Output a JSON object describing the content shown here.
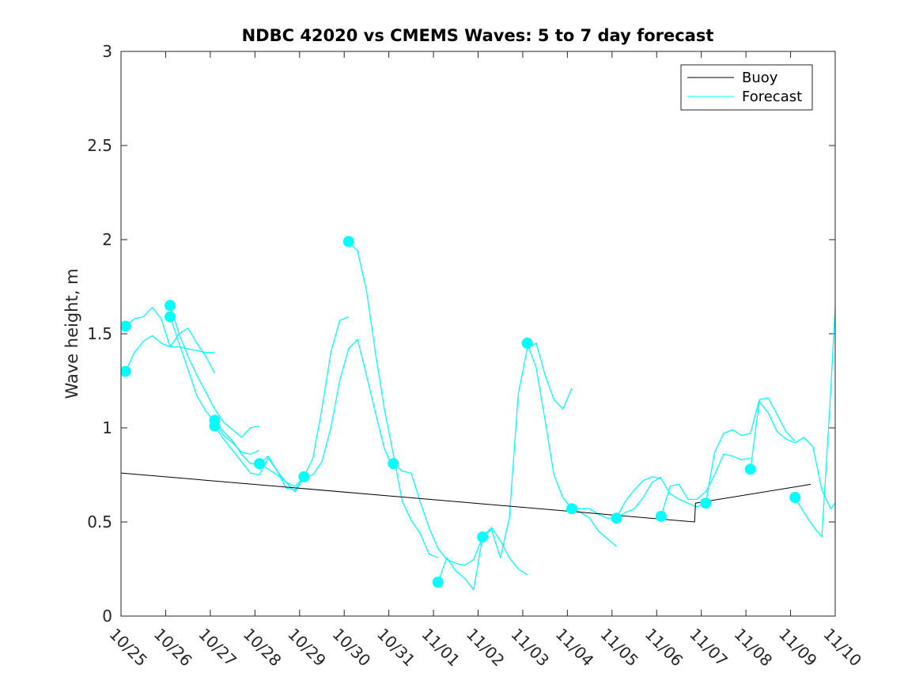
{
  "chart_data": {
    "type": "line",
    "title": "NDBC 42020 vs CMEMS Waves: 5 to 7 day forecast",
    "ylabel": "Wave height, m",
    "xlabel": "",
    "xlim": [
      0,
      16
    ],
    "ylim": [
      0,
      3
    ],
    "x_tick_values": [
      0,
      1,
      2,
      3,
      4,
      5,
      6,
      7,
      8,
      9,
      10,
      11,
      12,
      13,
      14,
      15,
      16
    ],
    "x_tick_labels": [
      "10/25",
      "10/26",
      "10/27",
      "10/28",
      "10/29",
      "10/30",
      "10/31",
      "11/01",
      "11/02",
      "11/03",
      "11/04",
      "11/05",
      "11/06",
      "11/07",
      "11/08",
      "11/09",
      "11/10"
    ],
    "y_ticks": [
      0,
      0.5,
      1,
      1.5,
      2,
      2.5,
      3
    ],
    "y_tick_labels": [
      "0",
      "0.5",
      "1",
      "1.5",
      "2",
      "2.5",
      "3"
    ],
    "grid": false,
    "legend_position": "top-right",
    "legend": [
      {
        "name": "Buoy",
        "color": "#000000"
      },
      {
        "name": "Forecast",
        "color": "#00FFFF"
      }
    ],
    "buoy": {
      "name": "Buoy",
      "color": "#000000",
      "x": [
        0.0,
        12.85,
        12.87,
        15.45
      ],
      "y": [
        0.76,
        0.5,
        0.6,
        0.7
      ]
    },
    "forecast": {
      "name": "Forecast",
      "color": "#00FFFF",
      "lines": [
        {
          "x": [
            0.1,
            0.3,
            0.5,
            0.7,
            0.9,
            1.1,
            1.3,
            1.5,
            1.7,
            1.9,
            2.1
          ],
          "y": [
            1.54,
            1.58,
            1.59,
            1.64,
            1.58,
            1.43,
            1.5,
            1.53,
            1.45,
            1.38,
            1.29
          ]
        },
        {
          "x": [
            0.1,
            0.3,
            0.5,
            0.7,
            0.9,
            1.1,
            1.3,
            1.5,
            1.7,
            1.9,
            2.1
          ],
          "y": [
            1.3,
            1.4,
            1.46,
            1.49,
            1.45,
            1.43,
            1.43,
            1.42,
            1.41,
            1.4,
            1.4
          ]
        },
        {
          "x": [
            1.1,
            1.3,
            1.5,
            1.7,
            1.9,
            2.1,
            2.3,
            2.5,
            2.7,
            2.9,
            3.1
          ],
          "y": [
            1.65,
            1.5,
            1.38,
            1.28,
            1.19,
            1.1,
            1.03,
            0.99,
            0.95,
            1.0,
            1.01
          ]
        },
        {
          "x": [
            1.1,
            1.3,
            1.5,
            1.7,
            1.9,
            2.1,
            2.3,
            2.5,
            2.7,
            2.9,
            3.1
          ],
          "y": [
            1.59,
            1.45,
            1.31,
            1.17,
            1.09,
            1.03,
            0.96,
            0.92,
            0.87,
            0.86,
            0.88
          ]
        },
        {
          "x": [
            2.1,
            2.3,
            2.5,
            2.7,
            2.9,
            3.1,
            3.3,
            3.5,
            3.7,
            3.9,
            4.1
          ],
          "y": [
            1.04,
            0.98,
            0.93,
            0.86,
            0.81,
            0.81,
            0.85,
            0.77,
            0.71,
            0.69,
            0.74
          ]
        },
        {
          "x": [
            2.1,
            2.3,
            2.5,
            2.7,
            2.9,
            3.1,
            3.3,
            3.5,
            3.7,
            3.9,
            4.1
          ],
          "y": [
            1.01,
            0.94,
            0.88,
            0.82,
            0.76,
            0.75,
            0.84,
            0.77,
            0.68,
            0.67,
            0.74
          ]
        },
        {
          "x": [
            3.1,
            3.3,
            3.5,
            3.7,
            3.9,
            4.1,
            4.3,
            4.5,
            4.7,
            4.9,
            5.1
          ],
          "y": [
            0.81,
            0.78,
            0.75,
            0.71,
            0.66,
            0.74,
            0.84,
            1.1,
            1.4,
            1.57,
            1.59
          ]
        },
        {
          "x": [
            4.1,
            4.3,
            4.5,
            4.7,
            4.9,
            5.1,
            5.3,
            5.5,
            5.7,
            5.9,
            6.1
          ],
          "y": [
            0.74,
            0.75,
            0.82,
            1.0,
            1.25,
            1.42,
            1.47,
            1.28,
            1.08,
            0.89,
            0.78
          ]
        },
        {
          "x": [
            5.1,
            5.3,
            5.5,
            5.7,
            5.9,
            6.1,
            6.3,
            6.5,
            6.7,
            6.9,
            7.1
          ],
          "y": [
            1.99,
            1.94,
            1.73,
            1.4,
            1.1,
            0.86,
            0.61,
            0.51,
            0.44,
            0.33,
            0.31
          ]
        },
        {
          "x": [
            6.1,
            6.3,
            6.5,
            6.7,
            6.9,
            7.1,
            7.3,
            7.5,
            7.7,
            7.9,
            8.1
          ],
          "y": [
            0.81,
            0.77,
            0.76,
            0.61,
            0.47,
            0.36,
            0.3,
            0.28,
            0.27,
            0.3,
            0.42
          ]
        },
        {
          "x": [
            7.1,
            7.3,
            7.5,
            7.7,
            7.9,
            8.1,
            8.3,
            8.5,
            8.7,
            8.9,
            9.1
          ],
          "y": [
            0.18,
            0.31,
            0.24,
            0.2,
            0.14,
            0.42,
            0.47,
            0.4,
            0.31,
            0.25,
            0.22
          ]
        },
        {
          "x": [
            8.1,
            8.3,
            8.5,
            8.7,
            8.9,
            9.1,
            9.3,
            9.5,
            9.7,
            9.9,
            10.1
          ],
          "y": [
            0.42,
            0.46,
            0.31,
            0.52,
            1.18,
            1.42,
            1.45,
            1.28,
            1.15,
            1.1,
            1.21
          ]
        },
        {
          "x": [
            9.1,
            9.3,
            9.5,
            9.7,
            9.9,
            10.1,
            10.3,
            10.5,
            10.7,
            10.9,
            11.1
          ],
          "y": [
            1.45,
            1.32,
            1.04,
            0.75,
            0.63,
            0.57,
            0.55,
            0.52,
            0.45,
            0.41,
            0.37
          ]
        },
        {
          "x": [
            10.1,
            10.3,
            10.5,
            10.7,
            10.9,
            11.1,
            11.3,
            11.5,
            11.7,
            11.9,
            12.1
          ],
          "y": [
            0.57,
            0.57,
            0.57,
            0.54,
            0.52,
            0.52,
            0.55,
            0.57,
            0.63,
            0.71,
            0.74
          ]
        },
        {
          "x": [
            11.1,
            11.3,
            11.5,
            11.7,
            11.9,
            12.1,
            12.3,
            12.5,
            12.7,
            12.9,
            13.1
          ],
          "y": [
            0.52,
            0.61,
            0.67,
            0.72,
            0.74,
            0.73,
            0.65,
            0.62,
            0.6,
            0.58,
            0.6
          ]
        },
        {
          "x": [
            12.1,
            12.3,
            12.5,
            12.7,
            12.9,
            13.1,
            13.3,
            13.5,
            13.7,
            13.9,
            14.1
          ],
          "y": [
            0.53,
            0.69,
            0.7,
            0.62,
            0.62,
            0.66,
            0.75,
            0.86,
            0.85,
            0.83,
            0.84
          ]
        },
        {
          "x": [
            13.1,
            13.3,
            13.5,
            13.7,
            13.9,
            14.1,
            14.3,
            14.5,
            14.7,
            14.9,
            15.1
          ],
          "y": [
            0.6,
            0.87,
            0.97,
            0.99,
            0.96,
            0.97,
            1.15,
            1.16,
            1.07,
            0.98,
            0.93
          ]
        },
        {
          "x": [
            14.1,
            14.3,
            14.5,
            14.7,
            14.9,
            15.1,
            15.3,
            15.5,
            15.7,
            15.9,
            16.0
          ],
          "y": [
            0.78,
            1.14,
            1.08,
            0.98,
            0.94,
            0.92,
            0.95,
            0.9,
            0.67,
            0.57,
            0.6
          ]
        },
        {
          "x": [
            15.1,
            15.3,
            15.5,
            15.7,
            15.9,
            16.0
          ],
          "y": [
            0.63,
            0.55,
            0.48,
            0.42,
            1.2,
            1.64
          ]
        }
      ],
      "markers": {
        "x": [
          0.1,
          0.1,
          1.1,
          1.1,
          2.1,
          2.1,
          3.1,
          4.1,
          5.1,
          6.1,
          7.1,
          8.1,
          9.1,
          10.1,
          11.1,
          12.1,
          13.1,
          14.1,
          15.1
        ],
        "y": [
          1.54,
          1.3,
          1.65,
          1.59,
          1.04,
          1.01,
          0.81,
          0.74,
          1.99,
          0.81,
          0.18,
          0.42,
          1.45,
          0.57,
          0.52,
          0.53,
          0.6,
          0.78,
          0.63
        ]
      }
    }
  }
}
